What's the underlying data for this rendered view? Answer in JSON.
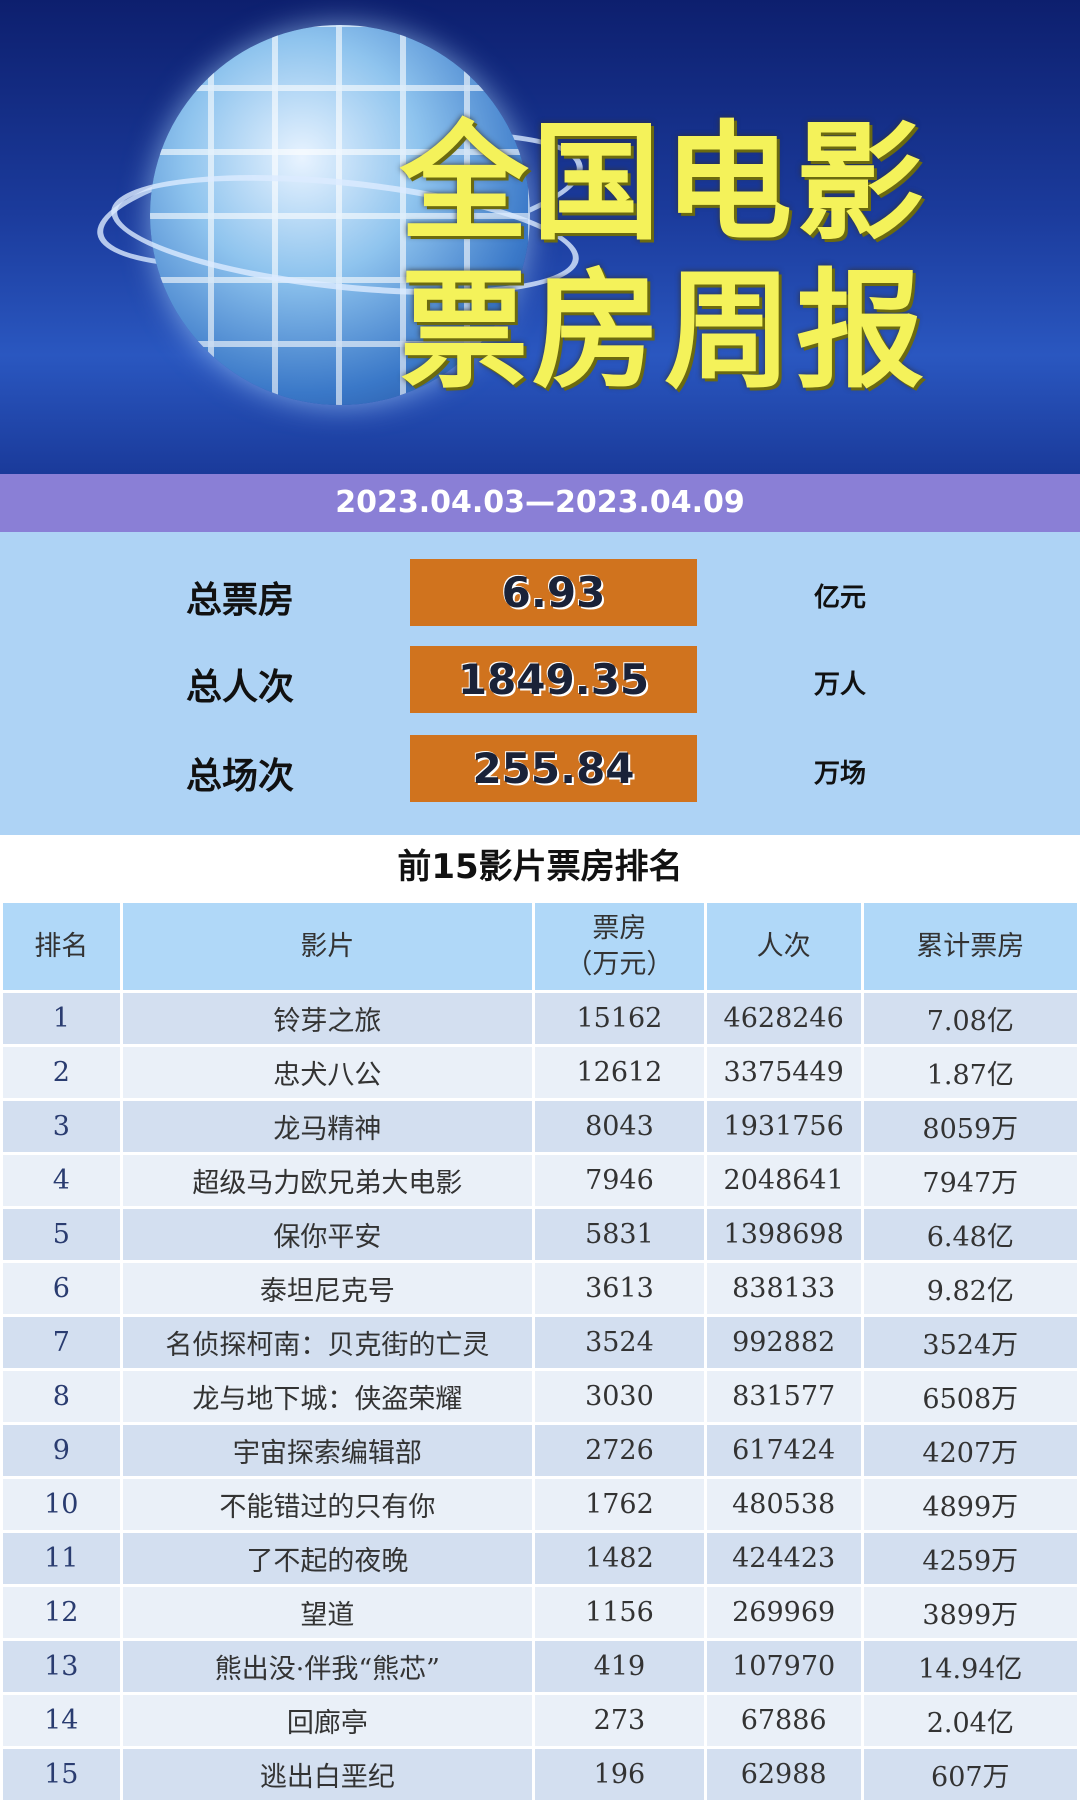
{
  "banner": {
    "title_line1": "全国电影",
    "title_line2": "票房周报"
  },
  "date_range": "2023.04.03—2023.04.09",
  "summary": [
    {
      "label": "总票房",
      "value": "6.93",
      "unit": "亿元"
    },
    {
      "label": "总人次",
      "value": "1849.35",
      "unit": "万人"
    },
    {
      "label": "总场次",
      "value": "255.84",
      "unit": "万场"
    }
  ],
  "ranking": {
    "title": "前15影片票房排名",
    "headers": {
      "rank": "排名",
      "film": "影片",
      "box_office_1": "票房",
      "box_office_2": "（万元）",
      "admissions": "人次",
      "cumulative": "累计票房"
    },
    "rows": [
      {
        "rank": "1",
        "film": "铃芽之旅",
        "box": "15162",
        "adm": "4628246",
        "cum": "7.08亿"
      },
      {
        "rank": "2",
        "film": "忠犬八公",
        "box": "12612",
        "adm": "3375449",
        "cum": "1.87亿"
      },
      {
        "rank": "3",
        "film": "龙马精神",
        "box": "8043",
        "adm": "1931756",
        "cum": "8059万"
      },
      {
        "rank": "4",
        "film": "超级马力欧兄弟大电影",
        "box": "7946",
        "adm": "2048641",
        "cum": "7947万"
      },
      {
        "rank": "5",
        "film": "保你平安",
        "box": "5831",
        "adm": "1398698",
        "cum": "6.48亿"
      },
      {
        "rank": "6",
        "film": "泰坦尼克号",
        "box": "3613",
        "adm": "838133",
        "cum": "9.82亿"
      },
      {
        "rank": "7",
        "film": "名侦探柯南：贝克街的亡灵",
        "box": "3524",
        "adm": "992882",
        "cum": "3524万"
      },
      {
        "rank": "8",
        "film": "龙与地下城：侠盗荣耀",
        "box": "3030",
        "adm": "831577",
        "cum": "6508万"
      },
      {
        "rank": "9",
        "film": "宇宙探索编辑部",
        "box": "2726",
        "adm": "617424",
        "cum": "4207万"
      },
      {
        "rank": "10",
        "film": "不能错过的只有你",
        "box": "1762",
        "adm": "480538",
        "cum": "4899万"
      },
      {
        "rank": "11",
        "film": "了不起的夜晚",
        "box": "1482",
        "adm": "424423",
        "cum": "4259万"
      },
      {
        "rank": "12",
        "film": "望道",
        "box": "1156",
        "adm": "269969",
        "cum": "3899万"
      },
      {
        "rank": "13",
        "film": "熊出没·伴我“熊芯”",
        "box": "419",
        "adm": "107970",
        "cum": "14.94亿"
      },
      {
        "rank": "14",
        "film": "回廊亭",
        "box": "273",
        "adm": "67886",
        "cum": "2.04亿"
      },
      {
        "rank": "15",
        "film": "逃出白垩纪",
        "box": "196",
        "adm": "62988",
        "cum": "607万"
      }
    ]
  }
}
